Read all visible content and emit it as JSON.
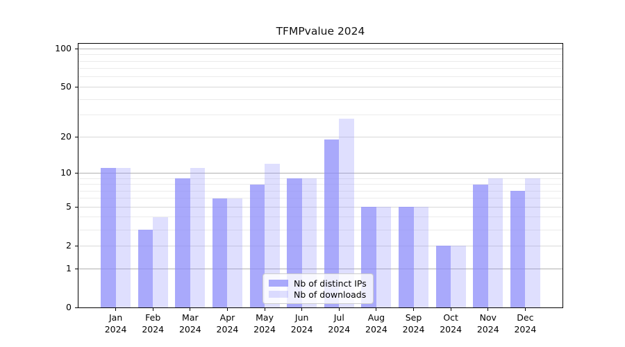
{
  "title": "TFMPvalue 2024",
  "chart_data": {
    "type": "bar",
    "title": "TFMPvalue 2024",
    "scale": "log1p",
    "categories": [
      "Jan",
      "Feb",
      "Mar",
      "Apr",
      "May",
      "Jun",
      "Jul",
      "Aug",
      "Sep",
      "Oct",
      "Nov",
      "Dec"
    ],
    "year_label": "2024",
    "series": [
      {
        "name": "Nb of distinct IPs",
        "color": "#8c8cfa",
        "alpha": 0.75,
        "values": [
          11,
          3,
          9,
          6,
          8,
          9,
          19,
          5,
          5,
          2,
          8,
          7
        ]
      },
      {
        "name": "Nb of downloads",
        "color": "#8c8cfa",
        "alpha": 0.28,
        "values": [
          11,
          4,
          11,
          6,
          12,
          9,
          28,
          5,
          5,
          2,
          9,
          9
        ]
      }
    ],
    "y_ticks": [
      0,
      1,
      2,
      5,
      10,
      20,
      50,
      100
    ],
    "ylim": [
      0,
      110
    ],
    "xlabel": "",
    "ylabel": "",
    "grid": true,
    "gridline_values": {
      "major": [
        1,
        10,
        100
      ],
      "mid": [
        2,
        5,
        20,
        50
      ],
      "minor": [
        3,
        4,
        6,
        7,
        8,
        9,
        30,
        40,
        60,
        70,
        80,
        90
      ]
    },
    "gridline_colors": {
      "major": "#b0b0b0",
      "mid": "#d8d8d8",
      "minor": "#ebebeb"
    },
    "legend_position": "lower center"
  }
}
